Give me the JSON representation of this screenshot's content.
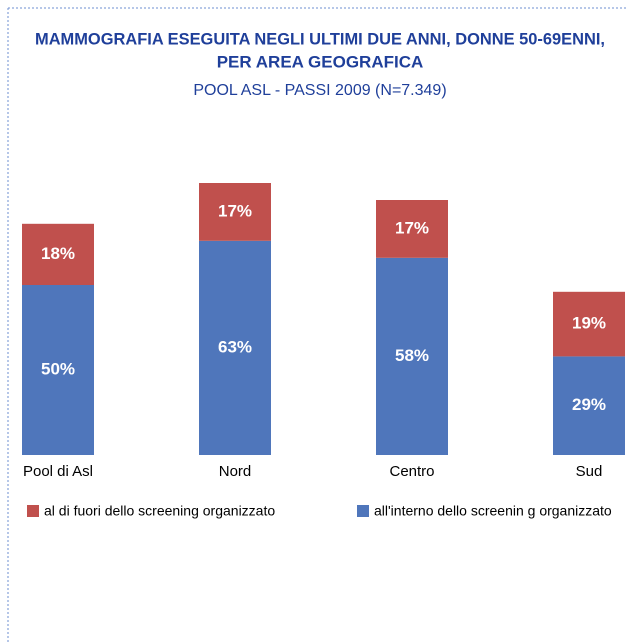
{
  "chart_data": {
    "type": "stacked_bar",
    "title": "MAMMOGRAFIA ESEGUITA NEGLI ULTIMI DUE ANNI, DONNE 50-69ENNI,",
    "title_line2": "PER AREA GEOGRAFICA",
    "subtitle": "POOL ASL - PASSI 2009 (N=7.349)",
    "categories": [
      "Pool di Asl",
      "Nord",
      "Centro",
      "Sud"
    ],
    "series": [
      {
        "name": "al di fuori dello screening organizzato",
        "color": "#c0504d",
        "values": [
          18,
          17,
          17,
          19
        ],
        "value_labels": [
          "18%",
          "17%",
          "17%",
          "19%"
        ]
      },
      {
        "name": "all'interno dello screenin g organizzato",
        "color": "#4f76bb",
        "values": [
          50,
          63,
          58,
          29
        ],
        "value_labels": [
          "50%",
          "63%",
          "58%",
          "29%"
        ]
      }
    ]
  }
}
